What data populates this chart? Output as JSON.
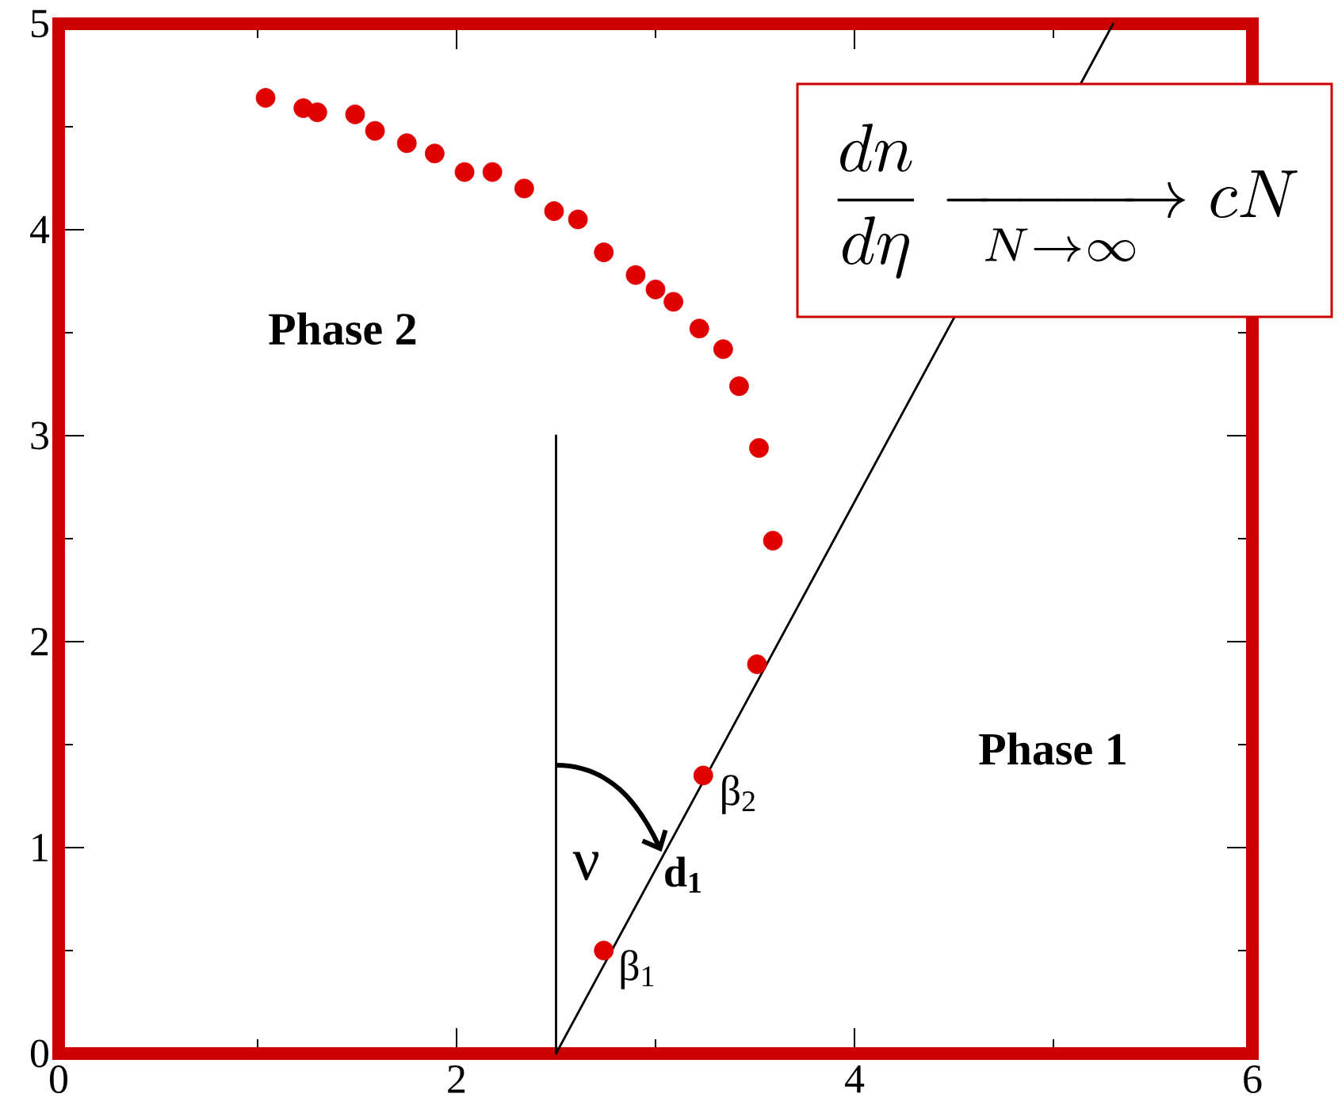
{
  "chart_data": {
    "type": "scatter",
    "xlim": [
      0,
      6
    ],
    "ylim": [
      0,
      5
    ],
    "xticks": [
      0,
      {
        "value": 1,
        "label": null
      },
      2,
      {
        "value": 3,
        "label": null
      },
      4,
      {
        "value": 5,
        "label": null
      },
      6
    ],
    "yticks": [
      0,
      {
        "value": 0.5,
        "label": null
      },
      1,
      {
        "value": 1.5,
        "label": null
      },
      2,
      {
        "value": 2.5,
        "label": null
      },
      3,
      {
        "value": 3.5,
        "label": null
      },
      4,
      {
        "value": 4.5,
        "label": null
      },
      5
    ],
    "series": [
      {
        "color": "#e00000",
        "marker": "circle",
        "x": [
          1.04,
          1.23,
          1.3,
          1.49,
          1.59,
          1.75,
          1.89,
          2.04,
          2.18,
          2.34,
          2.49,
          2.61,
          2.74,
          2.9,
          3.0,
          3.09,
          3.22,
          3.34,
          3.42,
          3.52,
          3.59,
          3.51,
          3.24,
          2.74
        ],
        "values": [
          4.64,
          4.59,
          4.57,
          4.56,
          4.48,
          4.42,
          4.37,
          4.28,
          4.28,
          4.2,
          4.09,
          4.05,
          3.89,
          3.78,
          3.71,
          3.65,
          3.52,
          3.42,
          3.24,
          2.94,
          2.49,
          1.89,
          1.35,
          0.5
        ]
      },
      {
        "type": "line",
        "color": "#000000",
        "line_style": "solid",
        "x": [
          2.5,
          2.5
        ],
        "values": [
          0,
          3
        ]
      },
      {
        "type": "line",
        "color": "#000000",
        "line_style": "solid",
        "x": [
          2.5,
          5.3
        ],
        "values": [
          0,
          5
        ]
      }
    ],
    "annotations": [
      "Phase 2",
      "Phase 1",
      "ν",
      {
        "text": "β$_{1}$",
        "x": 2.74,
        "y": 0.5
      },
      {
        "text": "β$_{2}$",
        "x": 3.24,
        "y": 1.35
      },
      {
        "text": "d$_{1}$",
        "x": 3.03,
        "y": 0.98
      },
      "\\frac{dn}{d\\eta}\\xrightarrow[N\\to\\infty]{\\qquad\\quad}cN"
    ]
  }
}
